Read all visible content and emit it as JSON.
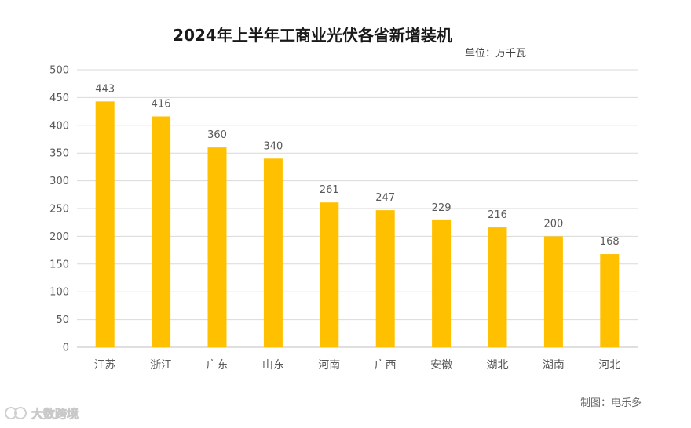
{
  "chart_data": {
    "type": "bar",
    "title": "2024年上半年工商业光伏各省新增装机",
    "unit_label": "单位：万千瓦",
    "categories": [
      "江苏",
      "浙江",
      "广东",
      "山东",
      "河南",
      "广西",
      "安徽",
      "湖北",
      "湖南",
      "河北"
    ],
    "values": [
      443,
      416,
      360,
      340,
      261,
      247,
      229,
      216,
      200,
      168
    ],
    "yticks": [
      0,
      50,
      100,
      150,
      200,
      250,
      300,
      350,
      400,
      450,
      500
    ],
    "ylim": [
      0,
      500
    ],
    "grid": true,
    "legend": "none",
    "bar_color": "#FFC000"
  },
  "credit": "制图：电乐多",
  "watermark": "大数跨境"
}
